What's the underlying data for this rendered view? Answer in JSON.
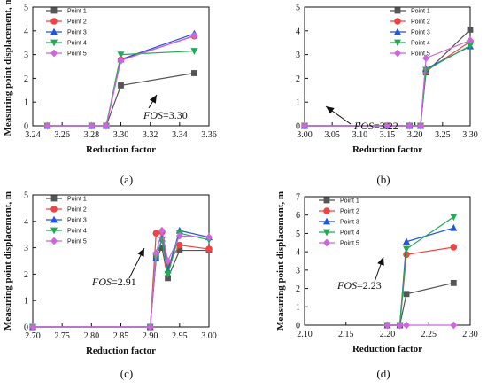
{
  "colors": {
    "Point 1": "#555555",
    "Point 2": "#ee4444",
    "Point 3": "#2255dd",
    "Point 4": "#22aa55",
    "Point 5": "#cc66dd"
  },
  "chart_data": [
    {
      "type": "line",
      "panel": "(a)",
      "xlabel": "Reduction factor",
      "ylabel": "Measuring point displacement, m",
      "xlim": [
        3.24,
        3.36
      ],
      "ylim": [
        0,
        5
      ],
      "xticks": [
        "3.24",
        "3.26",
        "3.28",
        "3.30",
        "3.32",
        "3.34",
        "3.36"
      ],
      "yticks": [
        "0",
        "1",
        "2",
        "3",
        "4",
        "5"
      ],
      "annotation": {
        "prefix": "FOS",
        "value": "=3.30",
        "x": 3.3,
        "y": 1.7
      },
      "legend": "top-left",
      "series": [
        {
          "name": "Point 1",
          "marker": "square",
          "x": [
            3.25,
            3.28,
            3.29,
            3.3,
            3.35
          ],
          "y": [
            0,
            0,
            0,
            1.7,
            2.22
          ]
        },
        {
          "name": "Point 2",
          "marker": "circle",
          "x": [
            3.25,
            3.28,
            3.29,
            3.3,
            3.35
          ],
          "y": [
            0,
            0,
            0,
            2.78,
            3.78
          ]
        },
        {
          "name": "Point 3",
          "marker": "triangle-up",
          "x": [
            3.25,
            3.28,
            3.29,
            3.3,
            3.35
          ],
          "y": [
            0,
            0,
            0,
            2.8,
            3.88
          ]
        },
        {
          "name": "Point 4",
          "marker": "triangle-down",
          "x": [
            3.25,
            3.28,
            3.29,
            3.3,
            3.35
          ],
          "y": [
            0,
            0,
            0,
            3.0,
            3.15
          ]
        },
        {
          "name": "Point 5",
          "marker": "diamond",
          "x": [
            3.25,
            3.28,
            3.29,
            3.3,
            3.35
          ],
          "y": [
            0,
            0,
            0,
            2.75,
            3.8
          ]
        }
      ]
    },
    {
      "type": "line",
      "panel": "(b)",
      "xlabel": "Reduction factor",
      "ylabel": "",
      "xlim": [
        3.0,
        3.3
      ],
      "ylim": [
        0,
        5
      ],
      "xticks": [
        "3.00",
        "3.05",
        "3.10",
        "3.15",
        "3.20",
        "3.25",
        "3.30"
      ],
      "yticks": [
        "0",
        "1",
        "2",
        "3",
        "4",
        "5"
      ],
      "annotation": {
        "prefix": "FOS",
        "value": "=3.22",
        "x": 3.22,
        "y": 2.25
      },
      "legend": "top-right",
      "series": [
        {
          "name": "Point 1",
          "marker": "square",
          "x": [
            3.0,
            3.15,
            3.19,
            3.21,
            3.22,
            3.3
          ],
          "y": [
            0,
            0,
            0,
            0,
            2.25,
            4.05
          ]
        },
        {
          "name": "Point 2",
          "marker": "circle",
          "x": [
            3.0,
            3.15,
            3.19,
            3.21,
            3.22,
            3.3
          ],
          "y": [
            0,
            0,
            0,
            0,
            2.3,
            3.55
          ]
        },
        {
          "name": "Point 3",
          "marker": "triangle-up",
          "x": [
            3.0,
            3.15,
            3.19,
            3.21,
            3.22,
            3.3
          ],
          "y": [
            0,
            0,
            0,
            0,
            2.4,
            3.35
          ]
        },
        {
          "name": "Point 4",
          "marker": "triangle-down",
          "x": [
            3.0,
            3.15,
            3.19,
            3.21,
            3.22,
            3.3
          ],
          "y": [
            0,
            0,
            0,
            0,
            2.35,
            3.38
          ]
        },
        {
          "name": "Point 5",
          "marker": "diamond",
          "x": [
            3.0,
            3.15,
            3.19,
            3.21,
            3.22,
            3.3
          ],
          "y": [
            0,
            0,
            0,
            0,
            2.85,
            3.6
          ]
        }
      ]
    },
    {
      "type": "line",
      "panel": "(c)",
      "xlabel": "Reduction factor",
      "ylabel": "Measuring point displacement, m",
      "xlim": [
        2.7,
        3.0
      ],
      "ylim": [
        0,
        5
      ],
      "xticks": [
        "2.70",
        "2.75",
        "2.80",
        "2.85",
        "2.90",
        "2.95",
        "3.00"
      ],
      "yticks": [
        "0",
        "1",
        "2",
        "3",
        "4",
        "5"
      ],
      "annotation": {
        "prefix": "FOS",
        "value": "=2.91",
        "x": 2.91,
        "y": 2.75
      },
      "legend": "top-left",
      "series": [
        {
          "name": "Point 1",
          "marker": "square",
          "x": [
            2.7,
            2.9,
            2.91,
            2.92,
            2.93,
            2.95,
            3.0
          ],
          "y": [
            0,
            0,
            2.6,
            3.0,
            1.85,
            2.9,
            2.9
          ]
        },
        {
          "name": "Point 2",
          "marker": "circle",
          "x": [
            2.7,
            2.9,
            2.91,
            2.92,
            2.93,
            2.95,
            3.0
          ],
          "y": [
            0,
            0,
            3.55,
            3.6,
            2.35,
            3.1,
            2.95
          ]
        },
        {
          "name": "Point 3",
          "marker": "triangle-up",
          "x": [
            2.7,
            2.9,
            2.91,
            2.92,
            2.93,
            2.95,
            3.0
          ],
          "y": [
            0,
            0,
            2.6,
            3.35,
            2.15,
            3.65,
            3.4
          ]
        },
        {
          "name": "Point 4",
          "marker": "triangle-down",
          "x": [
            2.7,
            2.9,
            2.91,
            2.92,
            2.93,
            2.95,
            3.0
          ],
          "y": [
            0,
            0,
            2.65,
            3.3,
            2.0,
            3.55,
            3.3
          ]
        },
        {
          "name": "Point 5",
          "marker": "diamond",
          "x": [
            2.7,
            2.9,
            2.91,
            2.92,
            2.93,
            2.95,
            3.0
          ],
          "y": [
            0,
            0,
            2.8,
            3.65,
            2.5,
            3.45,
            3.4
          ]
        }
      ]
    },
    {
      "type": "line",
      "panel": "(d)",
      "xlabel": "Reduction factor",
      "ylabel": "Measuring point displacement, m",
      "xlim": [
        2.1,
        2.3
      ],
      "ylim": [
        0,
        7
      ],
      "xticks": [
        "2.10",
        "2.15",
        "2.20",
        "2.25",
        "2.30"
      ],
      "yticks": [
        "0",
        "1",
        "2",
        "3",
        "4",
        "5",
        "6",
        "7"
      ],
      "annotation": {
        "prefix": "FOS",
        "value": "=2.23",
        "x": 2.223,
        "y": 3.9
      },
      "legend": "top-left",
      "series": [
        {
          "name": "Point 1",
          "marker": "square",
          "x": [
            2.2,
            2.215,
            2.223,
            2.28
          ],
          "y": [
            0,
            0,
            1.7,
            2.3
          ]
        },
        {
          "name": "Point 2",
          "marker": "circle",
          "x": [
            2.2,
            2.215,
            2.223,
            2.28
          ],
          "y": [
            0,
            0,
            3.85,
            4.25
          ]
        },
        {
          "name": "Point 3",
          "marker": "triangle-up",
          "x": [
            2.2,
            2.215,
            2.223,
            2.28
          ],
          "y": [
            0,
            0,
            4.55,
            5.3
          ]
        },
        {
          "name": "Point 4",
          "marker": "triangle-down",
          "x": [
            2.2,
            2.215,
            2.223,
            2.28
          ],
          "y": [
            0,
            0,
            4.15,
            5.9
          ]
        },
        {
          "name": "Point 5",
          "marker": "diamond",
          "x": [
            2.2,
            2.215,
            2.223,
            2.28
          ],
          "y": [
            0,
            0,
            0,
            0
          ]
        }
      ]
    }
  ]
}
